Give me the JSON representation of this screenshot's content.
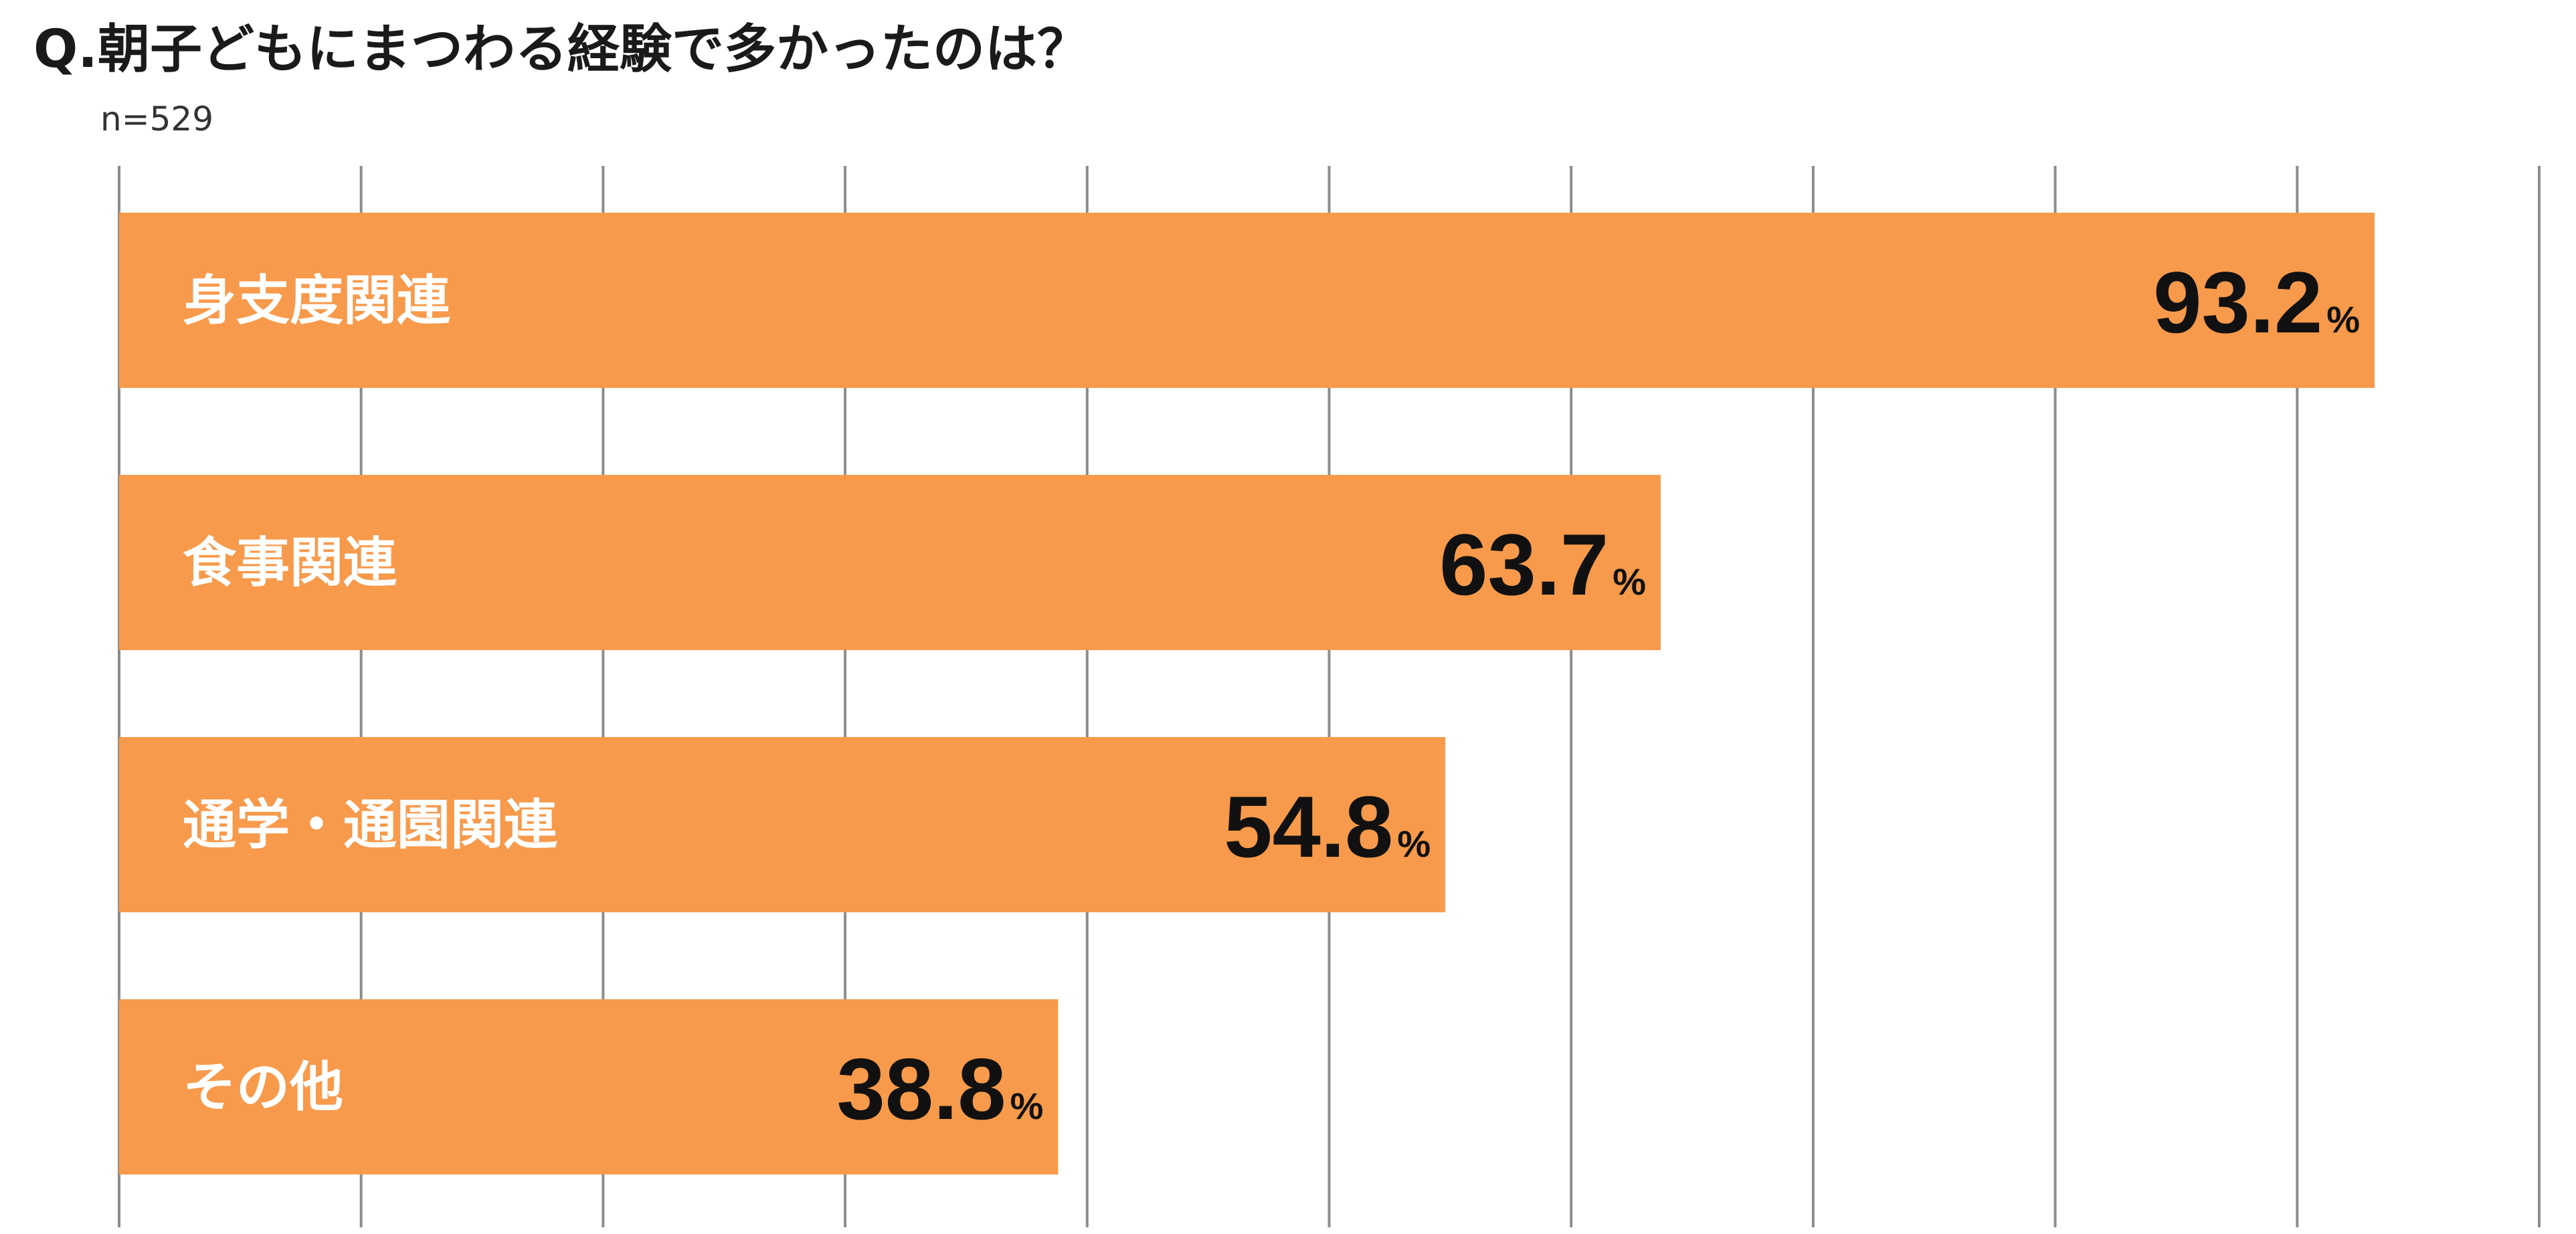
{
  "chart_data": {
    "type": "bar",
    "orientation": "horizontal",
    "title": "Q.朝子どもにまつわる経験で多かったのは？",
    "subtitle": "n=529",
    "categories": [
      "身支度関連",
      "食事関連",
      "通学・通園関連",
      "その他"
    ],
    "values": [
      93.2,
      63.7,
      54.8,
      38.8
    ],
    "value_labels": [
      "93.2",
      "63.7",
      "54.8",
      "38.8"
    ],
    "unit": "%",
    "xlim": [
      0,
      100
    ],
    "gridlines": true,
    "grid_step": 10,
    "bar_color": "#f79a4b",
    "grid_color": "#8c8c8c"
  }
}
